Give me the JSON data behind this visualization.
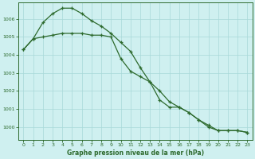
{
  "title": "Graphe pression niveau de la mer (hPa)",
  "x_ticks": [
    0,
    1,
    2,
    3,
    4,
    5,
    6,
    7,
    8,
    9,
    10,
    11,
    12,
    13,
    14,
    15,
    16,
    17,
    18,
    19,
    20,
    21,
    22,
    23
  ],
  "y_ticks": [
    1000,
    1001,
    1002,
    1003,
    1004,
    1005,
    1006
  ],
  "ylim": [
    999.3,
    1006.9
  ],
  "xlim": [
    -0.5,
    23.5
  ],
  "line1_x": [
    0,
    1,
    2,
    3,
    4,
    5,
    6,
    7,
    8,
    9,
    10,
    11,
    12,
    13,
    14,
    15,
    16,
    17,
    18,
    19,
    20,
    21,
    22,
    23
  ],
  "line1_y": [
    1004.3,
    1004.9,
    1005.8,
    1006.3,
    1006.6,
    1006.6,
    1006.3,
    1005.9,
    1005.6,
    1005.2,
    1004.7,
    1004.2,
    1003.3,
    1002.5,
    1002.0,
    1001.4,
    1001.1,
    1000.8,
    1000.4,
    1000.0,
    999.8,
    999.8,
    999.8,
    999.7
  ],
  "line2_x": [
    0,
    1,
    2,
    3,
    4,
    5,
    6,
    7,
    8,
    9,
    10,
    11,
    12,
    13,
    14,
    15,
    16,
    17,
    18,
    19,
    20,
    21,
    22,
    23
  ],
  "line2_y": [
    1004.3,
    1004.9,
    1005.0,
    1005.1,
    1005.2,
    1005.2,
    1005.2,
    1005.1,
    1005.1,
    1005.0,
    1003.8,
    1003.1,
    1002.8,
    1002.5,
    1001.5,
    1001.1,
    1001.1,
    1000.8,
    1000.4,
    1000.1,
    999.8,
    999.8,
    999.8,
    999.7
  ],
  "line_color": "#2d6a2d",
  "bg_color": "#cff0f0",
  "grid_color": "#a8d8d8",
  "tick_label_color": "#2d6a2d",
  "title_color": "#2d6a2d",
  "marker": "+",
  "linewidth": 0.9,
  "markersize": 3.5,
  "markeredgewidth": 0.9
}
